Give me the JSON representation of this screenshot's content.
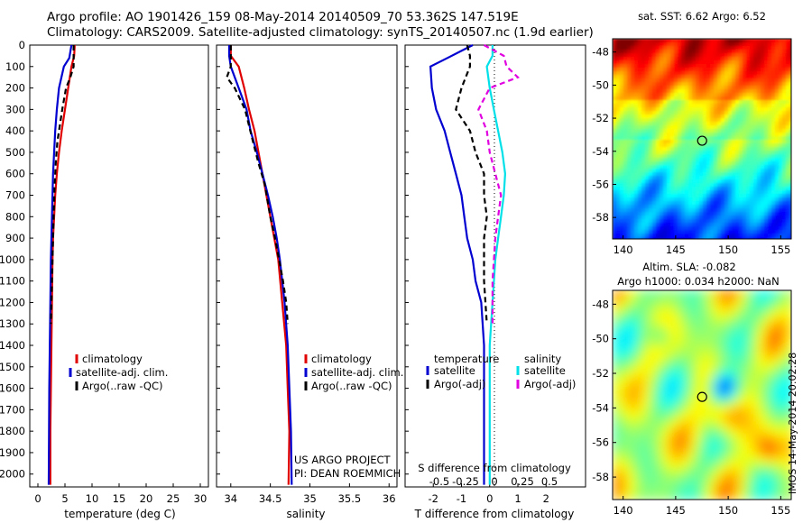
{
  "header": {
    "title_line1": "Argo profile: AO 1901426_159 08-May-2014 20140509_70 53.362S 147.519E",
    "title_line2": "Climatology: CARS2009. Satellite-adjusted climatology: synTS_20140507.nc (1.9d earlier)"
  },
  "colors": {
    "climatology": "#e00000",
    "satellite": "#0000d0",
    "argo": "#000000",
    "sat_salinity": "#00e0e8",
    "argo_salinity": "#e000e0"
  },
  "credits": {
    "project": "US ARGO PROJECT",
    "pi": "PI: DEAN ROEMMICH"
  },
  "stamp": "IMOS 14-May-2014 20:02:28",
  "chart_data": [
    {
      "id": "temperature",
      "type": "line",
      "xlabel": "temperature (deg C)",
      "xticks": [
        0,
        5,
        10,
        15,
        20,
        25,
        30
      ],
      "xlim": [
        -1.5,
        31.5
      ],
      "yticks": [
        0,
        100,
        200,
        300,
        400,
        500,
        600,
        700,
        800,
        900,
        1000,
        1100,
        1200,
        1300,
        1400,
        1500,
        1600,
        1700,
        1800,
        1900,
        2000
      ],
      "ylim": [
        0,
        2060
      ],
      "y_inverted": true,
      "legend": [
        "climatology",
        "satellite-adj. clim.",
        "Argo(..raw -QC)"
      ],
      "series": [
        {
          "name": "climatology",
          "color": "#e00000",
          "style": "solid",
          "x": [
            6.8,
            6.7,
            6.2,
            5.6,
            5.0,
            4.4,
            3.9,
            3.5,
            3.2,
            3.0,
            2.8,
            2.7,
            2.6,
            2.5,
            2.4,
            2.3,
            2.3
          ],
          "y": [
            0,
            50,
            100,
            200,
            300,
            400,
            500,
            600,
            700,
            800,
            900,
            1000,
            1200,
            1400,
            1600,
            1800,
            2050
          ]
        },
        {
          "name": "satellite-adj. clim.",
          "color": "#0000d0",
          "style": "solid",
          "x": [
            6.2,
            5.8,
            4.8,
            3.9,
            3.5,
            3.2,
            3.0,
            2.8,
            2.7,
            2.6,
            2.5,
            2.4,
            2.3,
            2.2,
            2.1,
            2.0
          ],
          "y": [
            0,
            60,
            100,
            200,
            300,
            400,
            500,
            600,
            700,
            800,
            900,
            1000,
            1200,
            1400,
            1600,
            2050
          ]
        },
        {
          "name": "Argo(..raw -QC)",
          "color": "#000000",
          "style": "dashed",
          "x": [
            6.6,
            6.6,
            6.0,
            5.2,
            4.5,
            3.6,
            3.3,
            3.1,
            2.9,
            2.8,
            2.7,
            2.6,
            2.5,
            2.4
          ],
          "y": [
            0,
            100,
            150,
            200,
            300,
            450,
            550,
            650,
            800,
            900,
            1000,
            1100,
            1200,
            1300
          ]
        }
      ]
    },
    {
      "id": "salinity",
      "type": "line",
      "xlabel": "salinity",
      "xticks": [
        34,
        34.5,
        35,
        35.5,
        36
      ],
      "xlim": [
        33.82,
        36.1
      ],
      "yticks": [
        0,
        100,
        200,
        300,
        400,
        500,
        600,
        700,
        800,
        900,
        1000,
        1100,
        1200,
        1300,
        1400,
        1500,
        1600,
        1700,
        1800,
        1900,
        2000
      ],
      "ylim": [
        0,
        2060
      ],
      "y_inverted": true,
      "legend": [
        "climatology",
        "satellite-adj. clim.",
        "Argo(..raw -QC)"
      ],
      "series": [
        {
          "name": "climatology",
          "color": "#e00000",
          "style": "solid",
          "x": [
            34.0,
            34.0,
            34.1,
            34.17,
            34.23,
            34.3,
            34.35,
            34.4,
            34.45,
            34.5,
            34.55,
            34.6,
            34.65,
            34.7,
            34.72,
            34.74,
            34.73
          ],
          "y": [
            0,
            50,
            100,
            200,
            300,
            400,
            500,
            600,
            700,
            800,
            900,
            1000,
            1200,
            1400,
            1600,
            1800,
            2050
          ]
        },
        {
          "name": "satellite-adj. clim.",
          "color": "#0000d0",
          "style": "solid",
          "x": [
            33.98,
            33.98,
            34.0,
            34.1,
            34.2,
            34.25,
            34.33,
            34.4,
            34.47,
            34.53,
            34.58,
            34.62,
            34.68,
            34.72,
            34.74,
            34.76,
            34.77
          ],
          "y": [
            0,
            50,
            100,
            200,
            300,
            400,
            500,
            600,
            700,
            800,
            900,
            1000,
            1200,
            1400,
            1600,
            1800,
            2050
          ]
        },
        {
          "name": "Argo(..raw -QC)",
          "color": "#000000",
          "style": "dashed",
          "x": [
            34.0,
            34.0,
            33.95,
            34.05,
            34.18,
            34.28,
            34.35,
            34.43,
            34.5,
            34.56,
            34.61,
            34.66,
            34.7,
            34.72
          ],
          "y": [
            0,
            100,
            150,
            200,
            300,
            450,
            550,
            650,
            800,
            900,
            1000,
            1100,
            1200,
            1300
          ]
        }
      ]
    },
    {
      "id": "difference",
      "type": "line",
      "xlabel": "T difference from climatology",
      "top_xlabel": "S difference from climatology",
      "xticks": [
        -2,
        -1,
        0,
        1,
        2
      ],
      "top_xticks": [
        "-0.5",
        "-0.25",
        "0",
        "0.25",
        "0.5"
      ],
      "xlim": [
        -3,
        3.4
      ],
      "ylim": [
        0,
        2060
      ],
      "y_inverted": true,
      "legend_headers": [
        "temperature",
        "salinity"
      ],
      "legend": [
        "satellite",
        "Argo(-adj)",
        "satellite",
        "Argo(-adj)"
      ],
      "series": [
        {
          "name": "satellite",
          "color": "#0000d0",
          "style": "solid",
          "x": [
            -0.6,
            -1.5,
            -2.1,
            -2.05,
            -1.9,
            -1.6,
            -1.4,
            -1.2,
            -1.0,
            -0.9,
            -0.8,
            -0.6,
            -0.5,
            -0.3,
            -0.2,
            -0.2
          ],
          "y": [
            0,
            60,
            100,
            200,
            300,
            400,
            500,
            600,
            700,
            800,
            900,
            1000,
            1100,
            1200,
            1400,
            2050
          ]
        },
        {
          "name": "Argo(-adj)",
          "color": "#000000",
          "style": "dashed",
          "x": [
            -0.8,
            -0.7,
            -0.7,
            -1.0,
            -1.2,
            -0.7,
            -0.5,
            -0.2,
            -0.2,
            -0.1,
            -0.2,
            -0.2,
            -0.1
          ],
          "y": [
            0,
            50,
            100,
            200,
            300,
            400,
            500,
            600,
            700,
            800,
            900,
            1100,
            1300
          ]
        },
        {
          "name": "satellite",
          "color": "#00e0e8",
          "style": "solid",
          "x": [
            0.1,
            0.1,
            -0.1,
            0.0,
            0.15,
            0.3,
            0.45,
            0.55,
            0.5,
            0.4,
            0.3,
            0.2,
            0.1,
            0.0,
            0.0
          ],
          "y": [
            0,
            50,
            100,
            200,
            300,
            400,
            500,
            600,
            700,
            800,
            900,
            1000,
            1200,
            1400,
            2050
          ]
        },
        {
          "name": "Argo(-adj)",
          "color": "#e000e0",
          "style": "dashed",
          "x": [
            -0.2,
            0.5,
            0.6,
            1.0,
            0.0,
            -0.4,
            -0.1,
            0.0,
            0.2,
            0.4,
            0.3,
            0.2,
            0.1,
            0.1
          ],
          "y": [
            0,
            50,
            100,
            150,
            200,
            300,
            400,
            500,
            600,
            700,
            800,
            900,
            1100,
            1300
          ]
        }
      ]
    },
    {
      "id": "sst_map",
      "type": "heatmap",
      "title": "sat. SST: 6.62  Argo: 6.52",
      "xticks": [
        140,
        145,
        150,
        155
      ],
      "yticks": [
        -48,
        -50,
        -52,
        -54,
        -56,
        -58
      ],
      "xlim": [
        139,
        156
      ],
      "ylim": [
        -59.3,
        -47.2
      ],
      "marker": {
        "lon": 147.519,
        "lat": -53.362
      }
    },
    {
      "id": "sla_map",
      "type": "heatmap",
      "title": "Altim. SLA: -0.082",
      "subtitle": "Argo h1000: 0.034 h2000: NaN",
      "xticks": [
        140,
        145,
        150,
        155
      ],
      "yticks": [
        -48,
        -50,
        -52,
        -54,
        -56,
        -58
      ],
      "xlim": [
        139,
        156
      ],
      "ylim": [
        -59.3,
        -47.2
      ],
      "marker": {
        "lon": 147.519,
        "lat": -53.362
      }
    }
  ]
}
